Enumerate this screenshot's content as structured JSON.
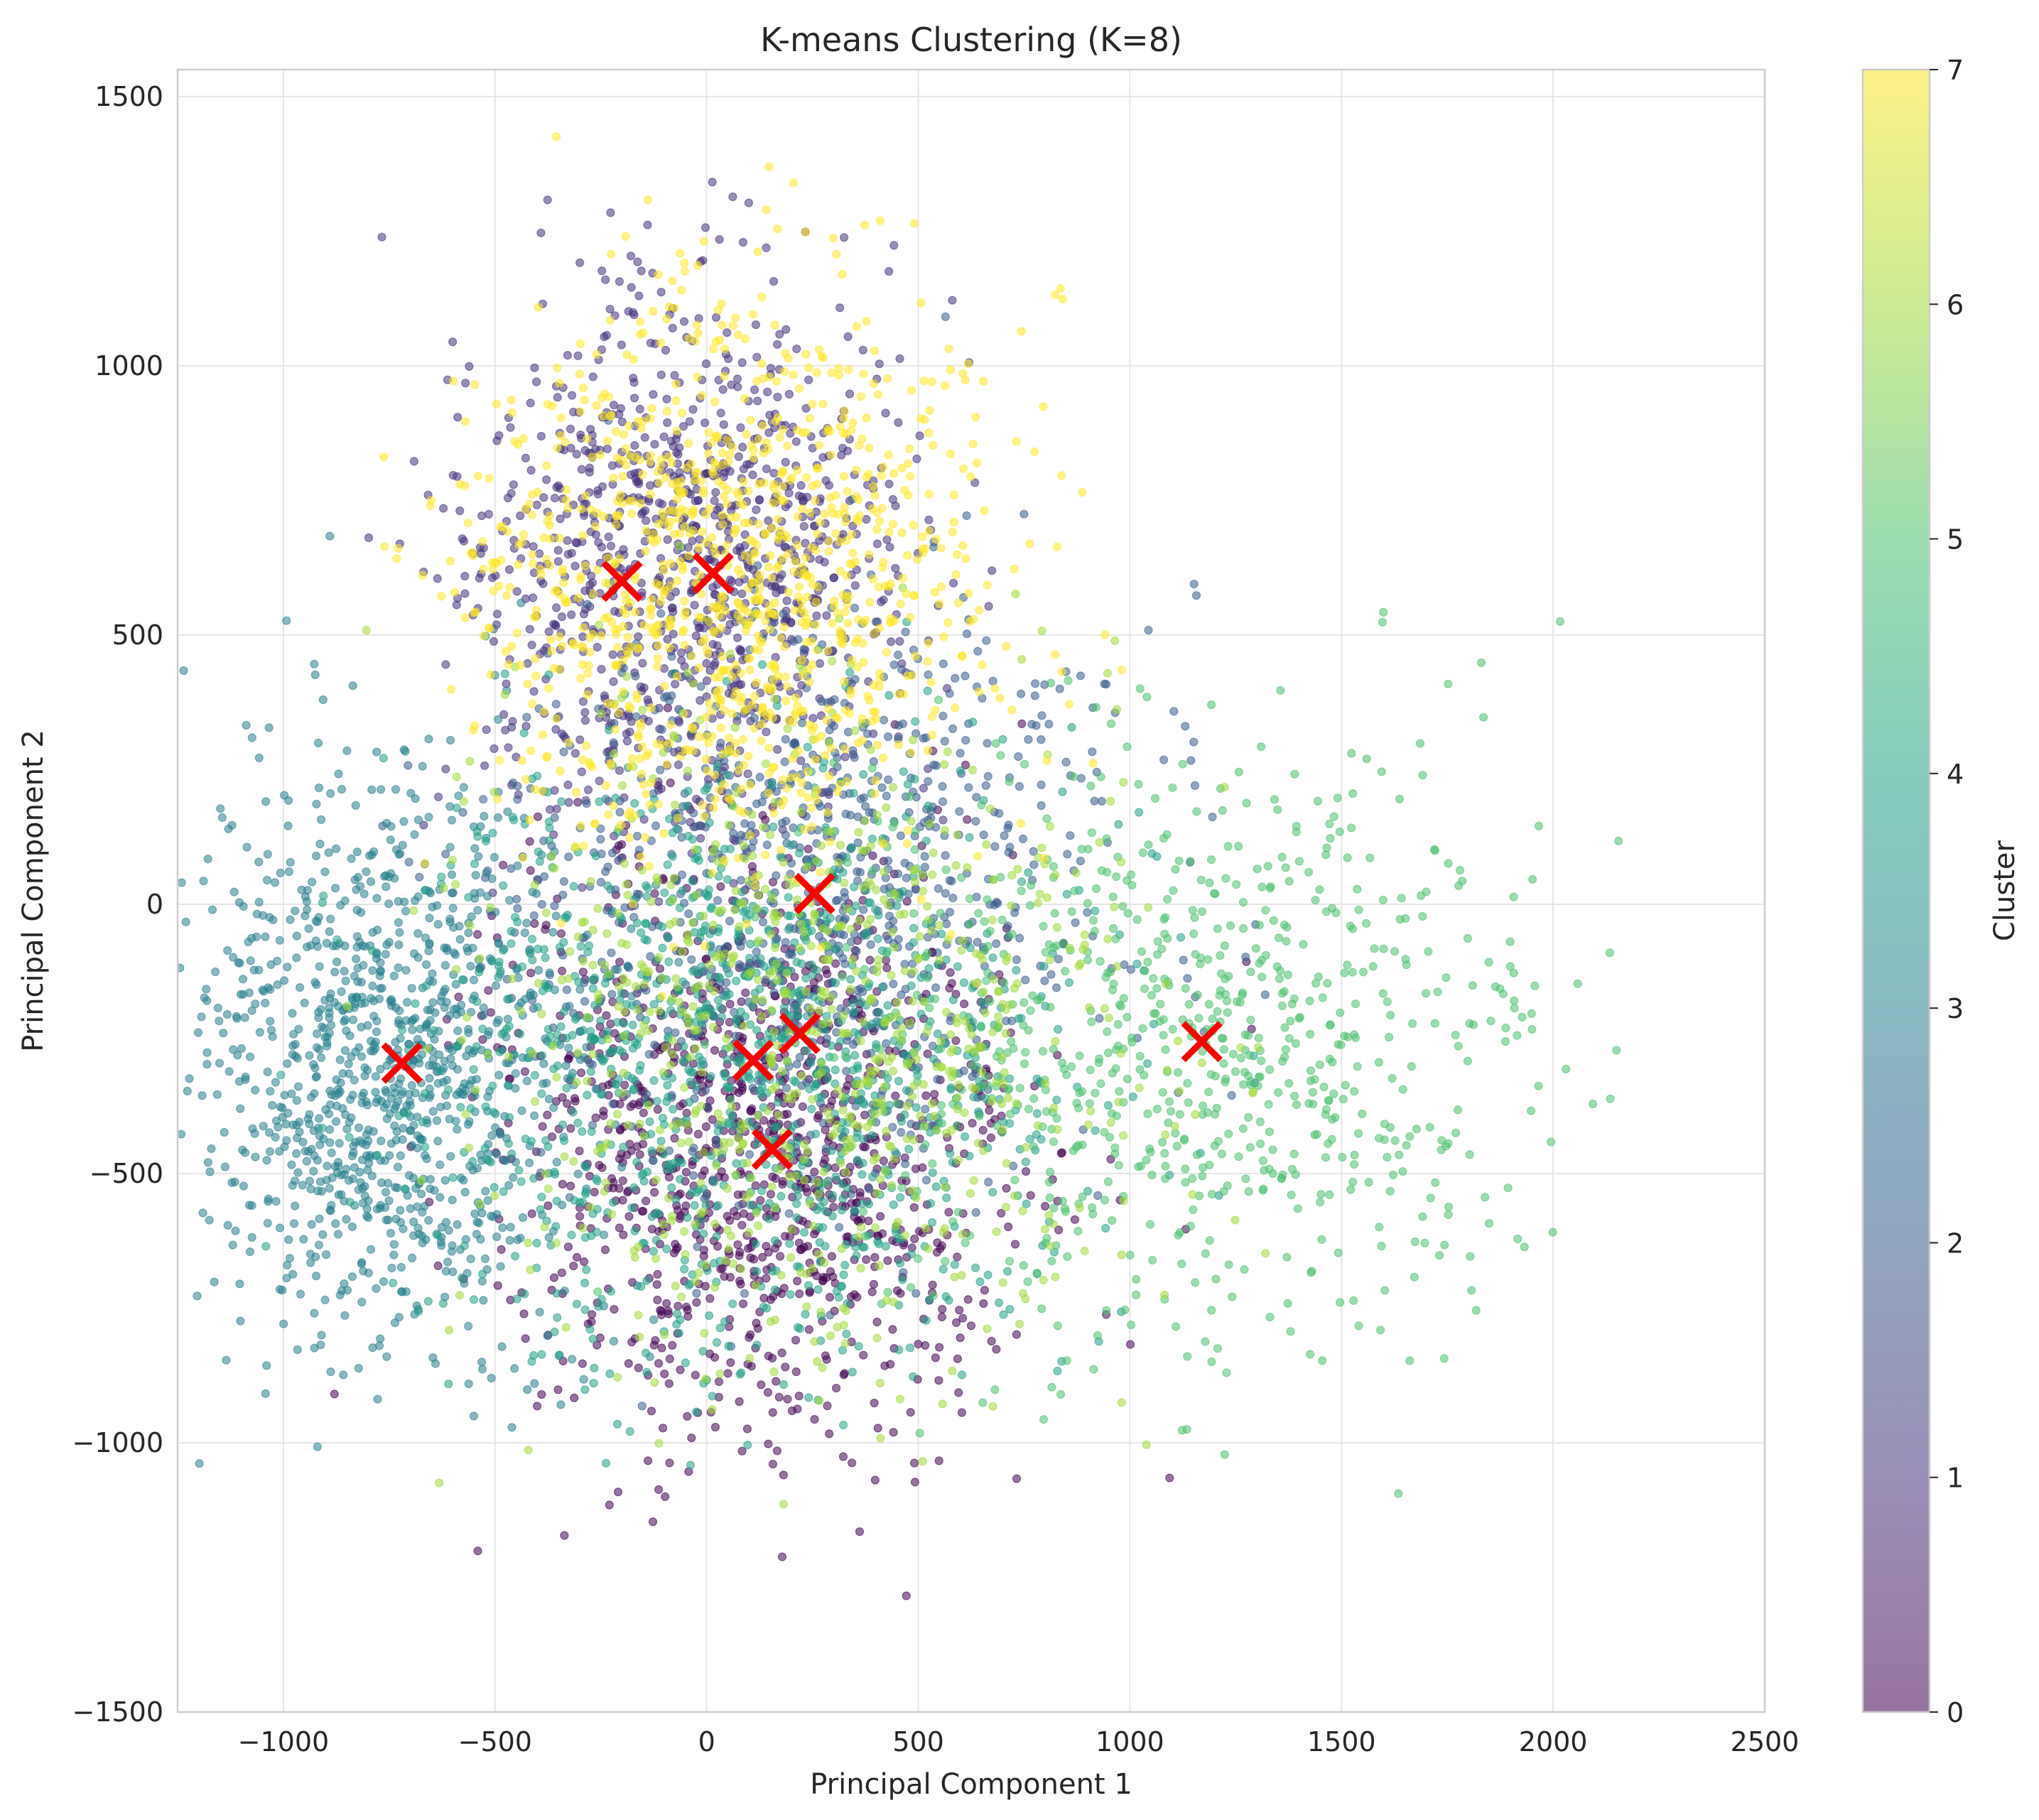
{
  "chart_data": {
    "type": "scatter",
    "title": "K-means Clustering (K=8)",
    "xlabel": "Principal Component 1",
    "ylabel": "Principal Component 2",
    "xlim": [
      -1250,
      2500
    ],
    "ylim": [
      -1500,
      1550
    ],
    "xticks": [
      -1000,
      -500,
      0,
      500,
      1000,
      1500,
      2000,
      2500
    ],
    "xtick_labels": [
      "−1000",
      "−500",
      "0",
      "500",
      "1000",
      "1500",
      "2000",
      "2500"
    ],
    "yticks": [
      -1500,
      -1000,
      -500,
      0,
      500,
      1000,
      1500
    ],
    "ytick_labels": [
      "−1500",
      "−1000",
      "−500",
      "0",
      "500",
      "1000",
      "1500"
    ],
    "grid": true,
    "colormap": "viridis",
    "point_alpha": 0.55,
    "colorbar": {
      "label": "Cluster",
      "range": [
        0,
        7
      ],
      "ticks": [
        0,
        1,
        2,
        3,
        4,
        5,
        6,
        7
      ],
      "tick_labels": [
        "0",
        "1",
        "2",
        "3",
        "4",
        "5",
        "6",
        "7"
      ],
      "position": "right"
    },
    "cluster_colors": [
      "#440154",
      "#46327e",
      "#365c8d",
      "#277f8e",
      "#1fa187",
      "#4ac16d",
      "#a0da39",
      "#fde725"
    ],
    "clusters": [
      {
        "cluster": 0,
        "center": [
          140,
          -450
        ],
        "spread": [
          300,
          270
        ],
        "n": 1100
      },
      {
        "cluster": 1,
        "center": [
          -60,
          640
        ],
        "spread": [
          260,
          240
        ],
        "n": 1000
      },
      {
        "cluster": 2,
        "center": [
          250,
          20
        ],
        "spread": [
          360,
          280
        ],
        "n": 900
      },
      {
        "cluster": 3,
        "center": [
          -760,
          -300
        ],
        "spread": [
          230,
          260
        ],
        "n": 1100
      },
      {
        "cluster": 4,
        "center": [
          100,
          -300
        ],
        "spread": [
          380,
          290
        ],
        "n": 1100
      },
      {
        "cluster": 5,
        "center": [
          1170,
          -260
        ],
        "spread": [
          420,
          270
        ],
        "n": 800
      },
      {
        "cluster": 6,
        "center": [
          230,
          -240
        ],
        "spread": [
          380,
          300
        ],
        "n": 800
      },
      {
        "cluster": 7,
        "center": [
          60,
          610
        ],
        "spread": [
          310,
          260
        ],
        "n": 1100
      }
    ],
    "centroids": [
      {
        "cluster": 0,
        "x": 155,
        "y": -455
      },
      {
        "cluster": 1,
        "x": -200,
        "y": 600
      },
      {
        "cluster": 2,
        "x": 255,
        "y": 20
      },
      {
        "cluster": 3,
        "x": -720,
        "y": -295
      },
      {
        "cluster": 4,
        "x": 110,
        "y": -290
      },
      {
        "cluster": 5,
        "x": 1170,
        "y": -255
      },
      {
        "cluster": 6,
        "x": 220,
        "y": -240
      },
      {
        "cluster": 7,
        "x": 15,
        "y": 615
      }
    ],
    "centroid_color": "#ff0000"
  }
}
